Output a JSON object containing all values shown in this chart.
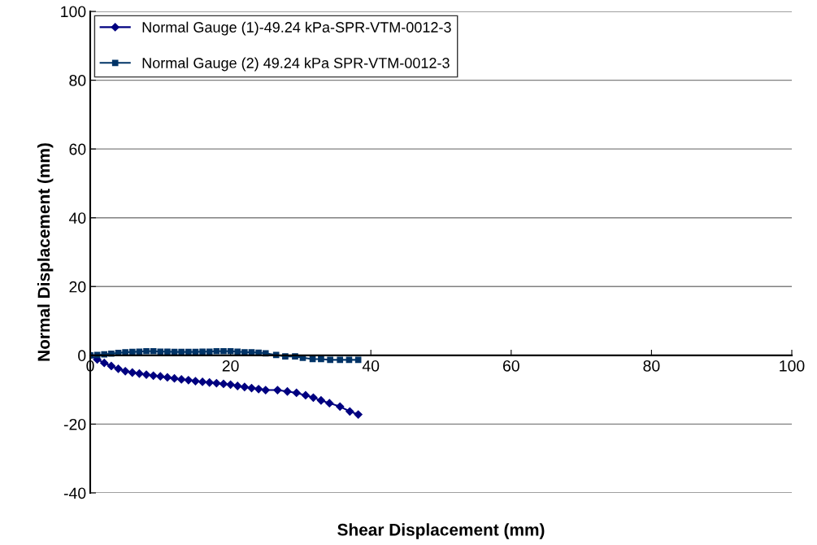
{
  "chart_data": {
    "type": "line",
    "xlabel": "Shear Displacement (mm)",
    "ylabel": "Normal Displacement (mm)",
    "xlim": [
      0,
      100
    ],
    "xticks": [
      0,
      20,
      40,
      60,
      80,
      100
    ],
    "ylim": [
      -40,
      100
    ],
    "yticks": [
      -40,
      -20,
      0,
      20,
      40,
      60,
      80,
      100
    ],
    "grid": "y",
    "legend": "top left",
    "series": [
      {
        "name": "Normal Gauge (1)-49.24 kPa-SPR-VTM-0012-3",
        "color": "#000080",
        "marker": "diamond",
        "x": [
          0,
          1,
          2,
          3,
          4,
          5,
          6,
          7,
          8,
          9,
          10,
          11,
          12,
          13,
          14,
          15,
          16,
          17,
          18,
          19,
          20,
          21,
          22,
          23,
          24,
          25,
          26.7,
          28.1,
          29.4,
          30.7,
          31.8,
          32.9,
          34.1,
          35.6,
          37.0,
          38.2
        ],
        "values": [
          0,
          -1.2,
          -2.2,
          -3.1,
          -3.9,
          -4.6,
          -5.0,
          -5.3,
          -5.6,
          -5.9,
          -6.1,
          -6.4,
          -6.7,
          -7.0,
          -7.2,
          -7.5,
          -7.7,
          -7.9,
          -8.1,
          -8.3,
          -8.5,
          -8.9,
          -9.2,
          -9.5,
          -9.8,
          -10.1,
          -10.1,
          -10.5,
          -10.9,
          -11.6,
          -12.3,
          -13.1,
          -13.9,
          -14.9,
          -16.3,
          -17.2
        ]
      },
      {
        "name": "Normal Gauge (2) 49.24 kPa SPR-VTM-0012-3",
        "color": "#003366",
        "marker": "square",
        "x": [
          0,
          1,
          2,
          3,
          4,
          5,
          6,
          7,
          8,
          9,
          10,
          11,
          12,
          13,
          14,
          15,
          16,
          17,
          18,
          19,
          20,
          21,
          22,
          23,
          24,
          25,
          26.5,
          27.8,
          29.2,
          30.3,
          31.7,
          32.9,
          34.2,
          35.6,
          36.9,
          38.2
        ],
        "values": [
          0,
          0.1,
          0.3,
          0.5,
          0.7,
          0.9,
          1.0,
          1.1,
          1.2,
          1.2,
          1.1,
          1.1,
          1.0,
          1.0,
          1.0,
          1.0,
          1.1,
          1.1,
          1.2,
          1.2,
          1.2,
          1.1,
          0.9,
          0.9,
          0.8,
          0.6,
          0.1,
          -0.3,
          -0.3,
          -0.7,
          -1.1,
          -1.1,
          -1.3,
          -1.3,
          -1.3,
          -1.3
        ]
      }
    ]
  }
}
